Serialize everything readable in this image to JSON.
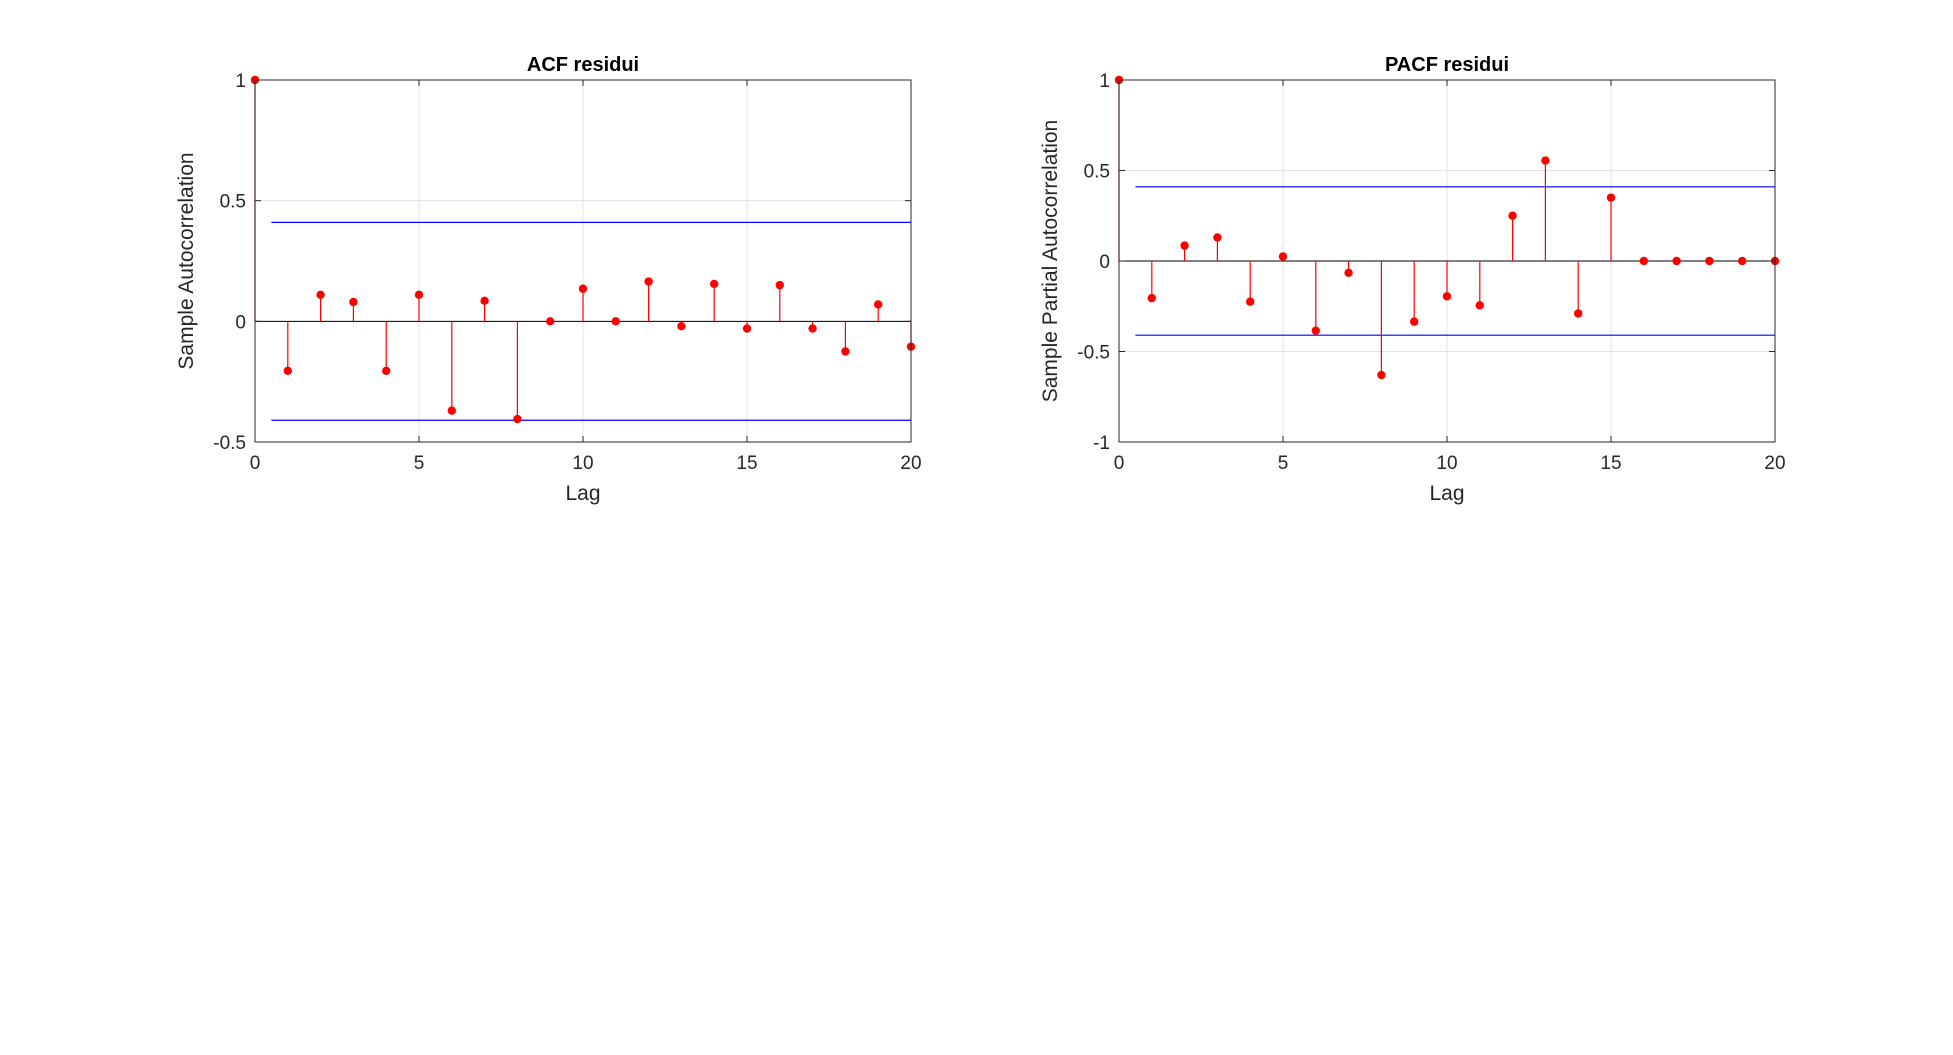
{
  "chart_data": [
    {
      "type": "stem",
      "title": "ACF residui",
      "xlabel": "Lag",
      "ylabel": "Sample Autocorrelation",
      "xlim": [
        0,
        20
      ],
      "ylim": [
        -0.5,
        1
      ],
      "xticks": [
        "0",
        "5",
        "10",
        "15",
        "20"
      ],
      "yticks": [
        "-0.5",
        "0",
        "0.5",
        "1"
      ],
      "grid": true,
      "x": [
        0,
        1,
        2,
        3,
        4,
        5,
        6,
        7,
        8,
        9,
        10,
        11,
        12,
        13,
        14,
        15,
        16,
        17,
        18,
        19,
        20
      ],
      "values": [
        1,
        -0.205,
        0.11,
        0.08,
        -0.205,
        0.11,
        -0.37,
        0.085,
        -0.405,
        0.0,
        0.135,
        0.0,
        0.165,
        -0.02,
        0.155,
        -0.03,
        0.15,
        -0.03,
        -0.125,
        0.07,
        -0.105
      ],
      "confidence_bounds": [
        0.41,
        -0.41
      ],
      "colors": {
        "stem": "#ff0000",
        "bounds": "#0000ff",
        "zero_line": "#000000"
      }
    },
    {
      "type": "stem",
      "title": "PACF residui",
      "xlabel": "Lag",
      "ylabel": "Sample Partial Autocorrelation",
      "xlim": [
        0,
        20
      ],
      "ylim": [
        -1,
        1
      ],
      "xticks": [
        "0",
        "5",
        "10",
        "15",
        "20"
      ],
      "yticks": [
        "-1",
        "-0.5",
        "0",
        "0.5",
        "1"
      ],
      "grid": true,
      "x": [
        0,
        1,
        2,
        3,
        4,
        5,
        6,
        7,
        8,
        9,
        10,
        11,
        12,
        13,
        14,
        15,
        16,
        17,
        18,
        19,
        20
      ],
      "values": [
        1,
        -0.205,
        0.085,
        0.13,
        -0.225,
        0.025,
        -0.385,
        -0.065,
        -0.63,
        -0.335,
        -0.195,
        -0.245,
        0.25,
        0.555,
        -0.29,
        0.35,
        0.0,
        0.0,
        0.0,
        0.0,
        0.0
      ],
      "confidence_bounds": [
        0.41,
        -0.41
      ],
      "colors": {
        "stem": "#ff0000",
        "bounds": "#0000ff",
        "zero_line": "#000000"
      }
    }
  ]
}
